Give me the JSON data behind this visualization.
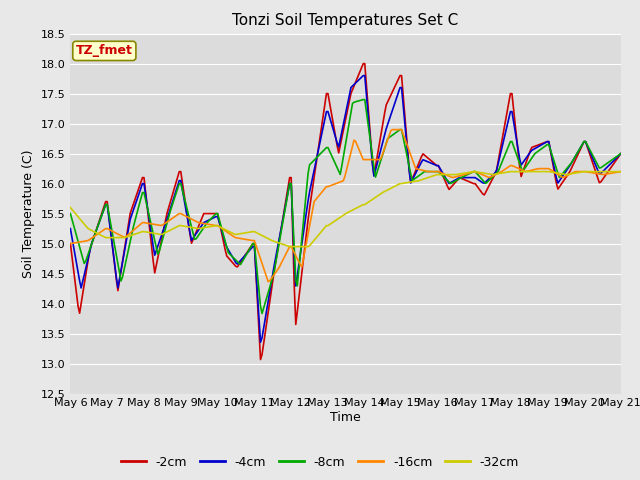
{
  "title": "Tonzi Soil Temperatures Set C",
  "xlabel": "Time",
  "ylabel": "Soil Temperature (C)",
  "ylim": [
    12.5,
    18.5
  ],
  "yticks": [
    12.5,
    13.0,
    13.5,
    14.0,
    14.5,
    15.0,
    15.5,
    16.0,
    16.5,
    17.0,
    17.5,
    18.0,
    18.5
  ],
  "series_colors": {
    "-2cm": "#CC0000",
    "-4cm": "#0000CC",
    "-8cm": "#00AA00",
    "-16cm": "#FF8800",
    "-32cm": "#CCCC00"
  },
  "legend_label": "TZ_fmet",
  "legend_box_facecolor": "#FFFFCC",
  "legend_text_color": "#CC0000",
  "legend_edge_color": "#888800",
  "fig_facecolor": "#E8E8E8",
  "ax_facecolor": "#DCDCDC",
  "grid_color": "#FFFFFF",
  "xtick_labels": [
    "May 6",
    "May 7",
    "May 8",
    "May 9",
    "May 10",
    "May 11",
    "May 12",
    "May 13",
    "May 14",
    "May 15",
    "May 16",
    "May 17",
    "May 18",
    "May 19",
    "May 20",
    "May 21"
  ],
  "xtick_positions": [
    0,
    1,
    2,
    3,
    4,
    5,
    6,
    7,
    8,
    9,
    10,
    11,
    12,
    13,
    14,
    15
  ]
}
